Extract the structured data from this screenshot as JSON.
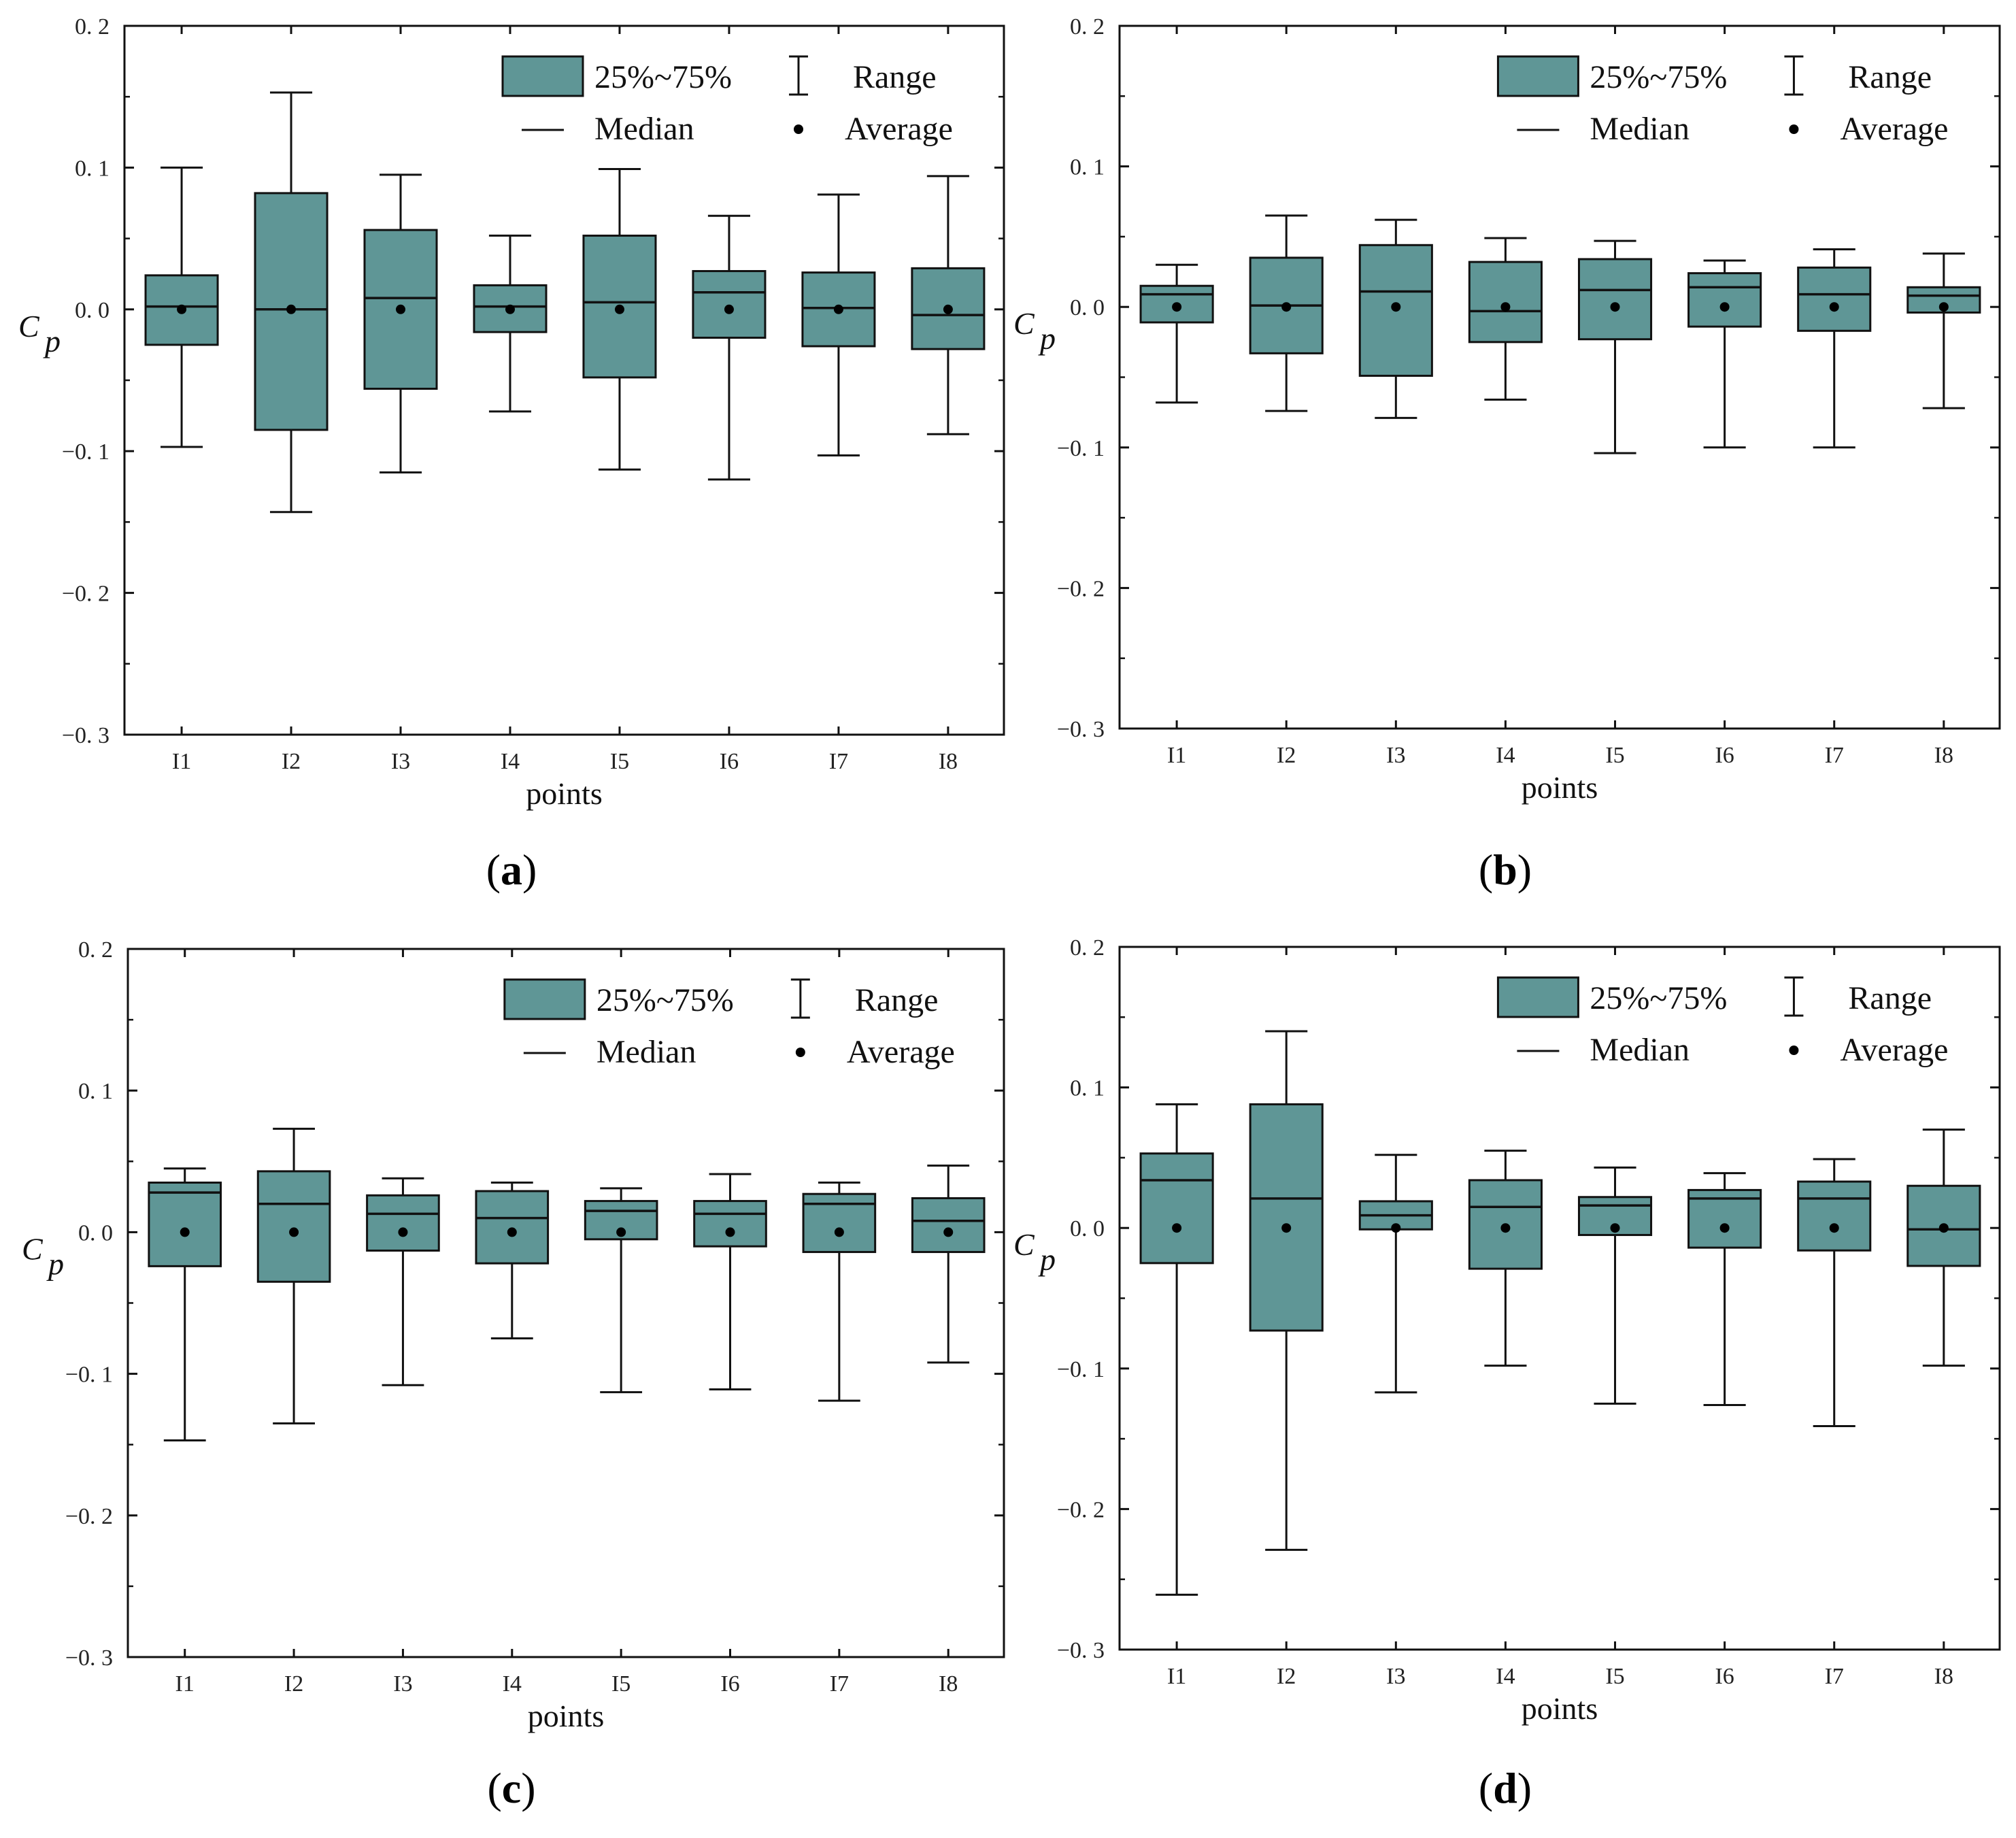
{
  "style": {
    "box_fill": "#5f9696",
    "line_color": "#111111",
    "background": "#ffffff"
  },
  "legend": {
    "box": "25%~75%",
    "range": "Range",
    "median": "Median",
    "average": "Average"
  },
  "chart_data": [
    {
      "type": "box",
      "panel_label": "a",
      "xlabel": "points",
      "ylabel": "C",
      "ylabel_subscript": "p",
      "ylim": [
        -0.3,
        0.2
      ],
      "yticks": [
        0.2,
        0.1,
        0.0,
        -0.1,
        -0.2,
        -0.3
      ],
      "ytick_labels": [
        "0. 2",
        "0. 1",
        "0. 0",
        "−0. 1",
        "−0. 2",
        "−0. 3"
      ],
      "categories": [
        "I1",
        "I2",
        "I3",
        "I4",
        "I5",
        "I6",
        "I7",
        "I8"
      ],
      "boxes": [
        {
          "min": -0.097,
          "q1": -0.025,
          "median": 0.002,
          "q3": 0.024,
          "max": 0.1,
          "mean": 0.0
        },
        {
          "min": -0.143,
          "q1": -0.085,
          "median": 0.0,
          "q3": 0.082,
          "max": 0.153,
          "mean": 0.0
        },
        {
          "min": -0.115,
          "q1": -0.056,
          "median": 0.008,
          "q3": 0.056,
          "max": 0.095,
          "mean": 0.0
        },
        {
          "min": -0.072,
          "q1": -0.016,
          "median": 0.002,
          "q3": 0.017,
          "max": 0.052,
          "mean": 0.0
        },
        {
          "min": -0.113,
          "q1": -0.048,
          "median": 0.005,
          "q3": 0.052,
          "max": 0.099,
          "mean": 0.0
        },
        {
          "min": -0.12,
          "q1": -0.02,
          "median": 0.012,
          "q3": 0.027,
          "max": 0.066,
          "mean": 0.0
        },
        {
          "min": -0.103,
          "q1": -0.026,
          "median": 0.001,
          "q3": 0.026,
          "max": 0.081,
          "mean": 0.0
        },
        {
          "min": -0.088,
          "q1": -0.028,
          "median": -0.004,
          "q3": 0.029,
          "max": 0.094,
          "mean": 0.0
        }
      ]
    },
    {
      "type": "box",
      "panel_label": "b",
      "xlabel": "points",
      "ylabel": "C",
      "ylabel_subscript": "p",
      "ylim": [
        -0.3,
        0.2
      ],
      "yticks": [
        0.2,
        0.1,
        0.0,
        -0.1,
        -0.2,
        -0.3
      ],
      "ytick_labels": [
        "0. 2",
        "0. 1",
        "0. 0",
        "−0. 1",
        "−0. 2",
        "−0. 3"
      ],
      "categories": [
        "I1",
        "I2",
        "I3",
        "I4",
        "I5",
        "I6",
        "I7",
        "I8"
      ],
      "boxes": [
        {
          "min": -0.068,
          "q1": -0.011,
          "median": 0.009,
          "q3": 0.015,
          "max": 0.03,
          "mean": 0.0
        },
        {
          "min": -0.074,
          "q1": -0.033,
          "median": 0.001,
          "q3": 0.035,
          "max": 0.065,
          "mean": 0.0
        },
        {
          "min": -0.079,
          "q1": -0.049,
          "median": 0.011,
          "q3": 0.044,
          "max": 0.062,
          "mean": 0.0
        },
        {
          "min": -0.066,
          "q1": -0.025,
          "median": -0.003,
          "q3": 0.032,
          "max": 0.049,
          "mean": 0.0
        },
        {
          "min": -0.104,
          "q1": -0.023,
          "median": 0.012,
          "q3": 0.034,
          "max": 0.047,
          "mean": 0.0
        },
        {
          "min": -0.1,
          "q1": -0.014,
          "median": 0.014,
          "q3": 0.024,
          "max": 0.033,
          "mean": 0.0
        },
        {
          "min": -0.1,
          "q1": -0.017,
          "median": 0.009,
          "q3": 0.028,
          "max": 0.041,
          "mean": 0.0
        },
        {
          "min": -0.072,
          "q1": -0.004,
          "median": 0.008,
          "q3": 0.014,
          "max": 0.038,
          "mean": 0.0
        }
      ]
    },
    {
      "type": "box",
      "panel_label": "c",
      "xlabel": "points",
      "ylabel": "C",
      "ylabel_subscript": "p",
      "ylim": [
        -0.3,
        0.2
      ],
      "yticks": [
        0.2,
        0.1,
        0.0,
        -0.1,
        -0.2,
        -0.3
      ],
      "ytick_labels": [
        "0. 2",
        "0. 1",
        "0. 0",
        "−0. 1",
        "−0. 2",
        "−0. 3"
      ],
      "categories": [
        "I1",
        "I2",
        "I3",
        "I4",
        "I5",
        "I6",
        "I7",
        "I8"
      ],
      "boxes": [
        {
          "min": -0.147,
          "q1": -0.024,
          "median": 0.028,
          "q3": 0.035,
          "max": 0.045,
          "mean": 0.0
        },
        {
          "min": -0.135,
          "q1": -0.035,
          "median": 0.02,
          "q3": 0.043,
          "max": 0.073,
          "mean": 0.0
        },
        {
          "min": -0.108,
          "q1": -0.013,
          "median": 0.013,
          "q3": 0.026,
          "max": 0.038,
          "mean": 0.0
        },
        {
          "min": -0.075,
          "q1": -0.022,
          "median": 0.01,
          "q3": 0.029,
          "max": 0.035,
          "mean": 0.0
        },
        {
          "min": -0.113,
          "q1": -0.005,
          "median": 0.015,
          "q3": 0.022,
          "max": 0.031,
          "mean": 0.0
        },
        {
          "min": -0.111,
          "q1": -0.01,
          "median": 0.013,
          "q3": 0.022,
          "max": 0.041,
          "mean": 0.0
        },
        {
          "min": -0.119,
          "q1": -0.014,
          "median": 0.02,
          "q3": 0.027,
          "max": 0.035,
          "mean": 0.0
        },
        {
          "min": -0.092,
          "q1": -0.014,
          "median": 0.008,
          "q3": 0.024,
          "max": 0.047,
          "mean": 0.0
        }
      ]
    },
    {
      "type": "box",
      "panel_label": "d",
      "xlabel": "points",
      "ylabel": "C",
      "ylabel_subscript": "p",
      "ylim": [
        -0.3,
        0.2
      ],
      "yticks": [
        0.2,
        0.1,
        0.0,
        -0.1,
        -0.2,
        -0.3
      ],
      "ytick_labels": [
        "0. 2",
        "0. 1",
        "0. 0",
        "−0. 1",
        "−0. 2",
        "−0. 3"
      ],
      "categories": [
        "I1",
        "I2",
        "I3",
        "I4",
        "I5",
        "I6",
        "I7",
        "I8"
      ],
      "boxes": [
        {
          "min": -0.261,
          "q1": -0.025,
          "median": 0.034,
          "q3": 0.053,
          "max": 0.088,
          "mean": 0.0
        },
        {
          "min": -0.229,
          "q1": -0.073,
          "median": 0.021,
          "q3": 0.088,
          "max": 0.14,
          "mean": 0.0
        },
        {
          "min": -0.117,
          "q1": -0.001,
          "median": 0.009,
          "q3": 0.019,
          "max": 0.052,
          "mean": 0.0
        },
        {
          "min": -0.098,
          "q1": -0.029,
          "median": 0.015,
          "q3": 0.034,
          "max": 0.055,
          "mean": 0.0
        },
        {
          "min": -0.125,
          "q1": -0.005,
          "median": 0.016,
          "q3": 0.022,
          "max": 0.043,
          "mean": 0.0
        },
        {
          "min": -0.126,
          "q1": -0.014,
          "median": 0.021,
          "q3": 0.027,
          "max": 0.039,
          "mean": 0.0
        },
        {
          "min": -0.141,
          "q1": -0.016,
          "median": 0.021,
          "q3": 0.033,
          "max": 0.049,
          "mean": 0.0
        },
        {
          "min": -0.098,
          "q1": -0.027,
          "median": -0.001,
          "q3": 0.03,
          "max": 0.07,
          "mean": 0.0
        }
      ]
    }
  ]
}
